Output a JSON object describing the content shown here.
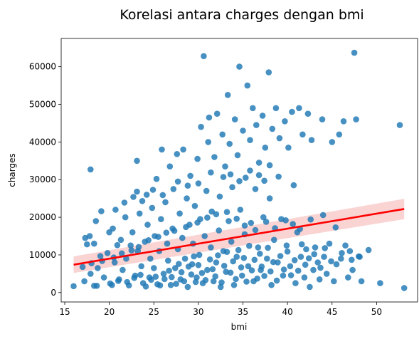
{
  "chart_data": {
    "type": "scatter",
    "title": "Korelasi antara charges dengan bmi",
    "xlabel": "bmi",
    "ylabel": "charges",
    "xlim": [
      14.6,
      54.6
    ],
    "ylim": [
      -2500,
      67500
    ],
    "xticks": [
      15,
      20,
      25,
      30,
      35,
      40,
      45,
      50
    ],
    "yticks": [
      0,
      10000,
      20000,
      30000,
      40000,
      50000,
      60000
    ],
    "grid": false,
    "colors": {
      "points": "#1f77b4",
      "regression": "#ff0000",
      "ci_band": "#f9c8c8"
    },
    "regression": {
      "x": [
        16.0,
        53.1
      ],
      "y": [
        7400,
        22200
      ],
      "ci_lower": [
        5200,
        19500
      ],
      "ci_upper": [
        9600,
        24900
      ]
    },
    "series": [
      {
        "points": [
          [
            16.0,
            1700
          ],
          [
            17.2,
            3000
          ],
          [
            17.3,
            14500
          ],
          [
            17.5,
            12800
          ],
          [
            17.9,
            32700
          ],
          [
            17.8,
            15000
          ],
          [
            17.9,
            5000
          ],
          [
            18.3,
            1800
          ],
          [
            18.3,
            13000
          ],
          [
            18.5,
            19000
          ],
          [
            18.7,
            6500
          ],
          [
            19.0,
            9700
          ],
          [
            19.1,
            21600
          ],
          [
            19.4,
            4000
          ],
          [
            19.8,
            10500
          ],
          [
            20.0,
            16000
          ],
          [
            20.3,
            2000
          ],
          [
            20.4,
            17000
          ],
          [
            20.6,
            8000
          ],
          [
            20.7,
            22000
          ],
          [
            20.9,
            12600
          ],
          [
            21.1,
            3500
          ],
          [
            21.3,
            14000
          ],
          [
            21.5,
            6000
          ],
          [
            21.8,
            20000
          ],
          [
            21.9,
            9000
          ],
          [
            22.2,
            1900
          ],
          [
            22.4,
            12500
          ],
          [
            22.6,
            16000
          ],
          [
            22.9,
            4500
          ],
          [
            23.1,
            26800
          ],
          [
            23.1,
            35000
          ],
          [
            23.2,
            11000
          ],
          [
            23.4,
            21000
          ],
          [
            23.6,
            7000
          ],
          [
            23.8,
            2500
          ],
          [
            24.0,
            13500
          ],
          [
            24.2,
            26000
          ],
          [
            24.3,
            18000
          ],
          [
            24.5,
            4000
          ],
          [
            24.6,
            9000
          ],
          [
            24.8,
            22500
          ],
          [
            25.0,
            6500
          ],
          [
            25.1,
            15000
          ],
          [
            25.3,
            30200
          ],
          [
            25.4,
            2200
          ],
          [
            25.6,
            11000
          ],
          [
            25.8,
            19500
          ],
          [
            25.9,
            38000
          ],
          [
            26.1,
            5000
          ],
          [
            26.3,
            24000
          ],
          [
            26.5,
            13000
          ],
          [
            26.6,
            8500
          ],
          [
            26.8,
            33500
          ],
          [
            26.9,
            2000
          ],
          [
            27.1,
            17000
          ],
          [
            27.2,
            27500
          ],
          [
            27.4,
            6500
          ],
          [
            27.6,
            36800
          ],
          [
            27.7,
            11500
          ],
          [
            27.9,
            21000
          ],
          [
            28.0,
            3500
          ],
          [
            28.2,
            14500
          ],
          [
            28.3,
            38000
          ],
          [
            28.5,
            9000
          ],
          [
            28.7,
            25000
          ],
          [
            28.8,
            1500
          ],
          [
            29.0,
            18000
          ],
          [
            29.1,
            31000
          ],
          [
            29.3,
            7500
          ],
          [
            29.4,
            13000
          ],
          [
            29.6,
            23000
          ],
          [
            29.8,
            4000
          ],
          [
            29.9,
            35500
          ],
          [
            30.1,
            10000
          ],
          [
            30.2,
            19500
          ],
          [
            30.3,
            44000
          ],
          [
            30.5,
            2500
          ],
          [
            30.6,
            62800
          ],
          [
            30.7,
            15000
          ],
          [
            30.9,
            27000
          ],
          [
            31.0,
            6000
          ],
          [
            31.1,
            40000
          ],
          [
            31.2,
            46500
          ],
          [
            31.4,
            12000
          ],
          [
            31.5,
            21500
          ],
          [
            31.7,
            3000
          ],
          [
            31.8,
            36000
          ],
          [
            32.0,
            8000
          ],
          [
            32.1,
            47500
          ],
          [
            32.3,
            16500
          ],
          [
            32.4,
            25500
          ],
          [
            32.5,
            1500
          ],
          [
            32.7,
            42000
          ],
          [
            32.8,
            11000
          ],
          [
            33.0,
            33500
          ],
          [
            33.1,
            5500
          ],
          [
            33.3,
            52500
          ],
          [
            33.4,
            19000
          ],
          [
            33.5,
            39500
          ],
          [
            33.7,
            13500
          ],
          [
            33.8,
            28000
          ],
          [
            34.0,
            2000
          ],
          [
            34.1,
            46000
          ],
          [
            34.3,
            9500
          ],
          [
            34.4,
            36500
          ],
          [
            34.6,
            60000
          ],
          [
            34.7,
            22000
          ],
          [
            34.9,
            4500
          ],
          [
            35.0,
            43000
          ],
          [
            35.2,
            15500
          ],
          [
            35.3,
            30500
          ],
          [
            35.5,
            55000
          ],
          [
            35.6,
            7000
          ],
          [
            35.8,
            40500
          ],
          [
            35.9,
            18500
          ],
          [
            36.1,
            49000
          ],
          [
            36.2,
            3000
          ],
          [
            36.4,
            27500
          ],
          [
            36.5,
            44500
          ],
          [
            36.7,
            12000
          ],
          [
            36.8,
            34500
          ],
          [
            37.0,
            6000
          ],
          [
            37.2,
            47000
          ],
          [
            37.3,
            20000
          ],
          [
            37.5,
            38500
          ],
          [
            37.7,
            9000
          ],
          [
            37.9,
            58500
          ],
          [
            38.0,
            25000
          ],
          [
            38.2,
            2000
          ],
          [
            38.3,
            43500
          ],
          [
            38.5,
            14000
          ],
          [
            38.7,
            49000
          ],
          [
            38.9,
            8000
          ],
          [
            39.1,
            41000
          ],
          [
            39.3,
            19500
          ],
          [
            39.5,
            4500
          ],
          [
            39.7,
            45500
          ],
          [
            39.9,
            12500
          ],
          [
            40.1,
            38500
          ],
          [
            40.3,
            7000
          ],
          [
            40.5,
            48000
          ],
          [
            40.7,
            28500
          ],
          [
            40.9,
            2500
          ],
          [
            41.1,
            16000
          ],
          [
            41.3,
            49000
          ],
          [
            41.5,
            9500
          ],
          [
            41.7,
            42000
          ],
          [
            41.9,
            4000
          ],
          [
            42.1,
            11500
          ],
          [
            42.3,
            47500
          ],
          [
            42.5,
            1500
          ],
          [
            42.7,
            40500
          ],
          [
            42.9,
            6000
          ],
          [
            43.1,
            12000
          ],
          [
            43.4,
            8000
          ],
          [
            43.6,
            3500
          ],
          [
            43.9,
            46000
          ],
          [
            44.1,
            9500
          ],
          [
            44.4,
            5000
          ],
          [
            44.7,
            13000
          ],
          [
            45.0,
            40000
          ],
          [
            45.2,
            3000
          ],
          [
            45.5,
            7500
          ],
          [
            45.8,
            42000
          ],
          [
            46.1,
            10500
          ],
          [
            46.3,
            45500
          ],
          [
            46.8,
            4000
          ],
          [
            47.0,
            11000
          ],
          [
            47.3,
            6000
          ],
          [
            47.5,
            63700
          ],
          [
            47.7,
            46000
          ],
          [
            48.1,
            9500
          ],
          [
            48.3,
            3000
          ],
          [
            49.1,
            11300
          ],
          [
            50.4,
            2500
          ],
          [
            52.6,
            44500
          ],
          [
            53.1,
            1200
          ],
          [
            18.6,
            1800
          ],
          [
            20.1,
            2400
          ],
          [
            21.0,
            3100
          ],
          [
            22.0,
            2800
          ],
          [
            22.8,
            3900
          ],
          [
            23.5,
            4700
          ],
          [
            24.1,
            1600
          ],
          [
            24.7,
            3400
          ],
          [
            25.2,
            4200
          ],
          [
            25.7,
            1900
          ],
          [
            26.2,
            3600
          ],
          [
            26.7,
            5800
          ],
          [
            27.0,
            4100
          ],
          [
            27.5,
            2300
          ],
          [
            27.8,
            7600
          ],
          [
            28.1,
            5400
          ],
          [
            28.4,
            3000
          ],
          [
            28.9,
            6900
          ],
          [
            29.2,
            4800
          ],
          [
            29.5,
            9600
          ],
          [
            29.7,
            2800
          ],
          [
            30.0,
            7300
          ],
          [
            30.4,
            5200
          ],
          [
            30.8,
            3300
          ],
          [
            31.3,
            8800
          ],
          [
            31.6,
            6200
          ],
          [
            31.9,
            4300
          ],
          [
            32.2,
            9900
          ],
          [
            32.6,
            2700
          ],
          [
            32.9,
            7100
          ],
          [
            33.2,
            10800
          ],
          [
            33.6,
            5300
          ],
          [
            33.9,
            8300
          ],
          [
            34.2,
            3600
          ],
          [
            34.5,
            11300
          ],
          [
            34.8,
            6700
          ],
          [
            35.1,
            9200
          ],
          [
            35.4,
            2900
          ],
          [
            35.7,
            12400
          ],
          [
            36.0,
            5900
          ],
          [
            36.3,
            8700
          ],
          [
            36.6,
            3700
          ],
          [
            36.9,
            10300
          ],
          [
            37.1,
            6900
          ],
          [
            37.4,
            4400
          ],
          [
            37.8,
            11900
          ],
          [
            38.1,
            5600
          ],
          [
            38.4,
            8100
          ],
          [
            38.8,
            3200
          ],
          [
            39.2,
            9700
          ],
          [
            39.6,
            6100
          ],
          [
            40.0,
            10900
          ],
          [
            40.4,
            4600
          ],
          [
            40.8,
            8600
          ],
          [
            41.2,
            5800
          ],
          [
            41.6,
            12800
          ],
          [
            42.0,
            7400
          ],
          [
            42.4,
            9100
          ],
          [
            43.0,
            10200
          ],
          [
            43.7,
            6600
          ],
          [
            44.2,
            11800
          ],
          [
            44.9,
            8300
          ],
          [
            46.0,
            9000
          ],
          [
            46.5,
            12500
          ],
          [
            47.2,
            8700
          ],
          [
            48.0,
            9600
          ],
          [
            17.0,
            6800
          ],
          [
            18.0,
            7800
          ],
          [
            19.2,
            8400
          ],
          [
            20.5,
            9300
          ],
          [
            21.4,
            10400
          ],
          [
            22.5,
            11200
          ],
          [
            23.3,
            12100
          ],
          [
            24.4,
            13900
          ],
          [
            25.5,
            14800
          ],
          [
            26.4,
            15900
          ],
          [
            27.3,
            16400
          ],
          [
            28.6,
            17400
          ],
          [
            29.9,
            18600
          ],
          [
            31.0,
            19900
          ],
          [
            32.0,
            20800
          ],
          [
            33.2,
            21400
          ],
          [
            34.3,
            19600
          ],
          [
            35.2,
            17800
          ],
          [
            36.4,
            16600
          ],
          [
            37.6,
            18800
          ],
          [
            38.6,
            17100
          ],
          [
            39.8,
            19200
          ],
          [
            40.6,
            18200
          ],
          [
            41.4,
            16900
          ],
          [
            42.6,
            19400
          ],
          [
            44.0,
            20600
          ],
          [
            45.4,
            17300
          ],
          [
            21.7,
            23900
          ],
          [
            22.7,
            25400
          ],
          [
            23.7,
            24300
          ],
          [
            24.9,
            27300
          ],
          [
            26.0,
            25900
          ],
          [
            27.7,
            29500
          ],
          [
            28.8,
            28400
          ],
          [
            30.0,
            29000
          ],
          [
            31.4,
            31900
          ],
          [
            32.8,
            30700
          ],
          [
            33.6,
            31400
          ],
          [
            34.6,
            29600
          ],
          [
            35.8,
            32400
          ],
          [
            36.8,
            31200
          ],
          [
            37.4,
            29700
          ],
          [
            38.0,
            33800
          ],
          [
            39.0,
            30800
          ]
        ]
      }
    ]
  }
}
